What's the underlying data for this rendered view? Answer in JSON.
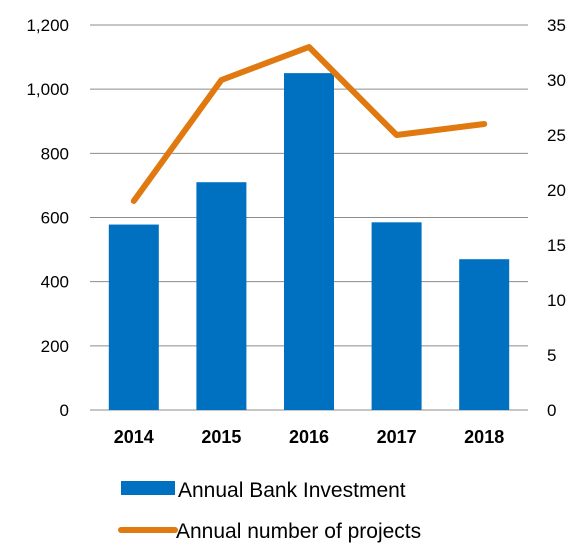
{
  "chart_data": {
    "type": "bar",
    "categories": [
      "2014",
      "2015",
      "2016",
      "2017",
      "2018"
    ],
    "series": [
      {
        "name": "Annual Bank Investment",
        "type": "bar",
        "axis": "left",
        "color": "#0070C0",
        "values": [
          578,
          710,
          1050,
          585,
          470
        ]
      },
      {
        "name": "Annual number of projects",
        "type": "line",
        "axis": "right",
        "color": "#E07A10",
        "values": [
          19,
          30,
          33,
          25,
          26
        ]
      }
    ],
    "y_left": {
      "range": [
        0,
        1200
      ],
      "ticks": [
        "0",
        "200",
        "400",
        "600",
        "800",
        "1,000",
        "1,200"
      ]
    },
    "y_right": {
      "range": [
        0,
        35
      ],
      "ticks": [
        "0",
        "5",
        "10",
        "15",
        "20",
        "25",
        "30",
        "35"
      ]
    },
    "grid": true,
    "legend_position": "bottom"
  }
}
